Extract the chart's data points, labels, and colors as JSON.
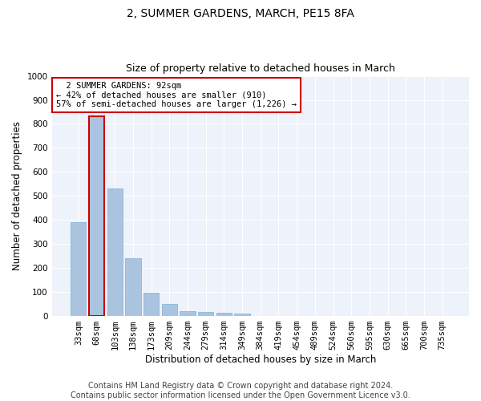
{
  "title": "2, SUMMER GARDENS, MARCH, PE15 8FA",
  "subtitle": "Size of property relative to detached houses in March",
  "xlabel": "Distribution of detached houses by size in March",
  "ylabel": "Number of detached properties",
  "categories": [
    "33sqm",
    "68sqm",
    "103sqm",
    "138sqm",
    "173sqm",
    "209sqm",
    "244sqm",
    "279sqm",
    "314sqm",
    "349sqm",
    "384sqm",
    "419sqm",
    "454sqm",
    "489sqm",
    "524sqm",
    "560sqm",
    "595sqm",
    "630sqm",
    "665sqm",
    "700sqm",
    "735sqm"
  ],
  "values": [
    390,
    830,
    530,
    240,
    97,
    52,
    20,
    17,
    15,
    11,
    0,
    0,
    0,
    0,
    0,
    0,
    0,
    0,
    0,
    0,
    0
  ],
  "bar_color": "#aac4e0",
  "bar_edge_color": "#7aafd4",
  "highlight_bar_index": 1,
  "highlight_edge_color": "#cc0000",
  "ylim": [
    0,
    1000
  ],
  "yticks": [
    0,
    100,
    200,
    300,
    400,
    500,
    600,
    700,
    800,
    900,
    1000
  ],
  "annotation_text": "  2 SUMMER GARDENS: 92sqm\n← 42% of detached houses are smaller (910)\n57% of semi-detached houses are larger (1,226) →",
  "annotation_box_facecolor": "#ffffff",
  "annotation_box_edgecolor": "#cc0000",
  "footer_line1": "Contains HM Land Registry data © Crown copyright and database right 2024.",
  "footer_line2": "Contains public sector information licensed under the Open Government Licence v3.0.",
  "background_color": "#eef2fa",
  "grid_color": "#ffffff",
  "title_fontsize": 10,
  "subtitle_fontsize": 9,
  "axis_label_fontsize": 8.5,
  "tick_fontsize": 7.5,
  "annotation_fontsize": 7.5,
  "footer_fontsize": 7
}
